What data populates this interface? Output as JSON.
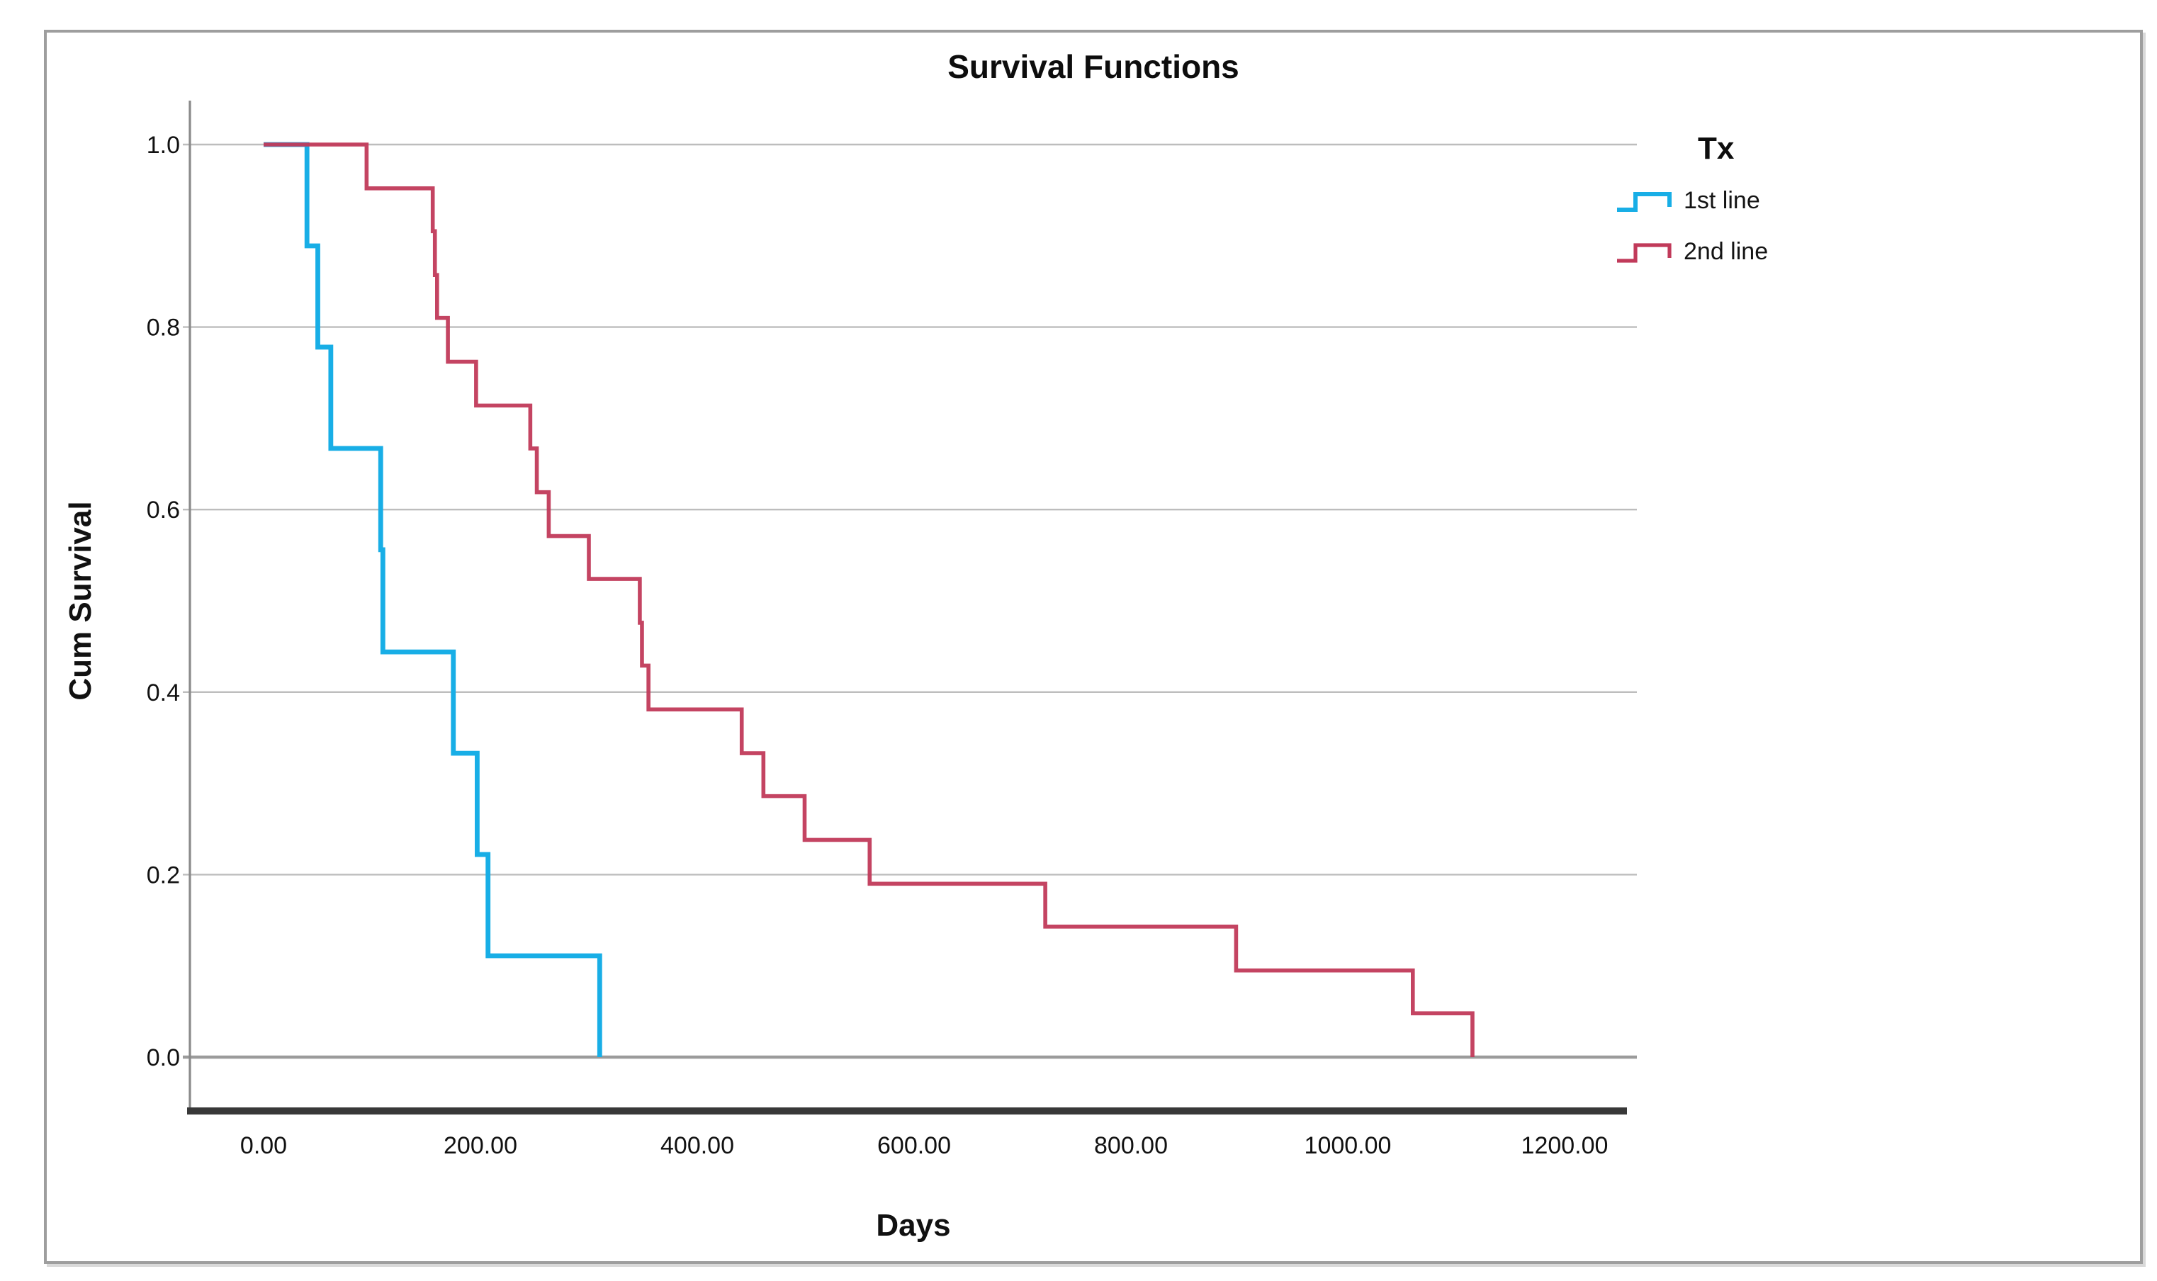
{
  "figure": {
    "title": "Survival Functions",
    "legend": {
      "title": "Tx",
      "items": [
        {
          "label": "1st line",
          "color": "#18AEE6"
        },
        {
          "label": "2nd line",
          "color": "#C13A5A"
        }
      ]
    }
  },
  "chart_data": {
    "type": "line",
    "line_style": "step-post",
    "title": "Survival Functions",
    "xlabel": "Days",
    "ylabel": "Cum Survival",
    "xlim": [
      -70,
      1270
    ],
    "ylim": [
      0,
      1.05
    ],
    "grid": "horizontal",
    "legend_position": "right",
    "x_ticks": [
      0,
      200,
      400,
      600,
      800,
      1000,
      1200
    ],
    "x_tick_labels": [
      "0.00",
      "200.00",
      "400.00",
      "600.00",
      "800.00",
      "1000.00",
      "1200.00"
    ],
    "y_ticks": [
      0,
      0.2,
      0.4,
      0.6,
      0.8,
      1
    ],
    "y_tick_labels": [
      "0.0",
      "0.2",
      "0.4",
      "0.6",
      "0.8",
      "1.0"
    ],
    "series": [
      {
        "name": "1st line",
        "color": "#18AEE6",
        "points": [
          [
            0,
            1.0
          ],
          [
            40,
            0.889
          ],
          [
            50,
            0.778
          ],
          [
            62,
            0.667
          ],
          [
            108,
            0.556
          ],
          [
            110,
            0.444
          ],
          [
            175,
            0.333
          ],
          [
            197,
            0.222
          ],
          [
            207,
            0.111
          ],
          [
            310,
            0.0
          ]
        ]
      },
      {
        "name": "2nd line",
        "color": "#C13A5A",
        "points": [
          [
            0,
            1.0
          ],
          [
            95,
            0.952
          ],
          [
            156,
            0.905
          ],
          [
            158,
            0.857
          ],
          [
            160,
            0.81
          ],
          [
            170,
            0.762
          ],
          [
            196,
            0.714
          ],
          [
            246,
            0.667
          ],
          [
            252,
            0.619
          ],
          [
            263,
            0.571
          ],
          [
            300,
            0.524
          ],
          [
            347,
            0.476
          ],
          [
            349,
            0.429
          ],
          [
            355,
            0.381
          ],
          [
            441,
            0.333
          ],
          [
            461,
            0.286
          ],
          [
            499,
            0.238
          ],
          [
            559,
            0.19
          ],
          [
            721,
            0.143
          ],
          [
            897,
            0.095
          ],
          [
            1060,
            0.048
          ],
          [
            1115,
            0.0
          ]
        ]
      }
    ]
  },
  "colors": {
    "grid": "#BDBDBD",
    "zero_line": "#9B9B9B",
    "x_axis": "#383838",
    "y_axis": "#8A8A8A",
    "frame_border": "#9E9E9E",
    "text": "#111111"
  }
}
